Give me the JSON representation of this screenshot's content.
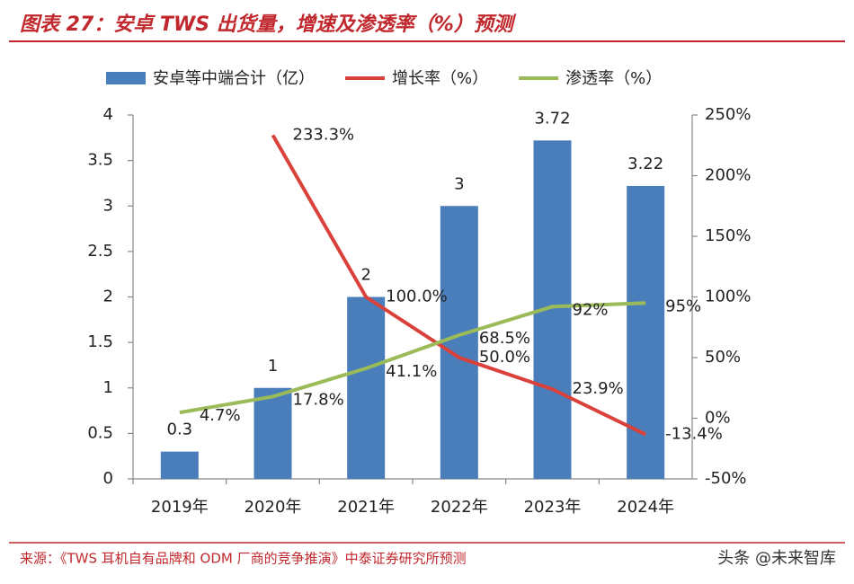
{
  "chart_data": {
    "type": "bar_line",
    "title": "图表 27：安卓 TWS 出货量，增速及渗透率（%）预测",
    "source": "来源：《TWS 耳机自有品牌和 ODM 厂商的竞争推演》中泰证券研究所预测",
    "watermark": "头条 @未来智库",
    "categories": [
      "2019年",
      "2020年",
      "2021年",
      "2022年",
      "2023年",
      "2024年"
    ],
    "series": [
      {
        "name": "安卓等中端合计（亿）",
        "color": "#4a7ebb",
        "kind": "bar",
        "values": [
          0.3,
          1,
          2,
          3,
          3.72,
          3.22
        ]
      },
      {
        "name": "增长率（%）",
        "color": "#d9413a",
        "kind": "line",
        "axis": "y2",
        "values": [
          null,
          233.3,
          100.0,
          50.0,
          23.9,
          -13.4
        ],
        "value_labels": [
          null,
          "233.3%",
          "100.0%",
          "50.0%",
          "23.9%",
          "-13.4%"
        ]
      },
      {
        "name": "渗透率（%）",
        "color": "#9bbb59",
        "kind": "line",
        "axis": "y2",
        "values": [
          4.7,
          17.8,
          41.1,
          68.5,
          92,
          95
        ],
        "value_labels": [
          "4.7%",
          "17.8%",
          "41.1%",
          "68.5%",
          "92%",
          "95%"
        ]
      }
    ],
    "ylim": [
      0,
      4
    ],
    "yticks": [
      0,
      0.5,
      1,
      1.5,
      2,
      2.5,
      3,
      3.5,
      4
    ],
    "y2lim": [
      -50,
      250
    ],
    "y2ticks": [
      {
        "value": -50,
        "label": "-50%"
      },
      {
        "value": 0,
        "label": "0%"
      },
      {
        "value": 50,
        "label": "50%"
      },
      {
        "value": 100,
        "label": "100%"
      },
      {
        "value": 150,
        "label": "150%"
      },
      {
        "value": 200,
        "label": "200%"
      },
      {
        "value": 250,
        "label": "250%"
      }
    ],
    "grid": false
  }
}
